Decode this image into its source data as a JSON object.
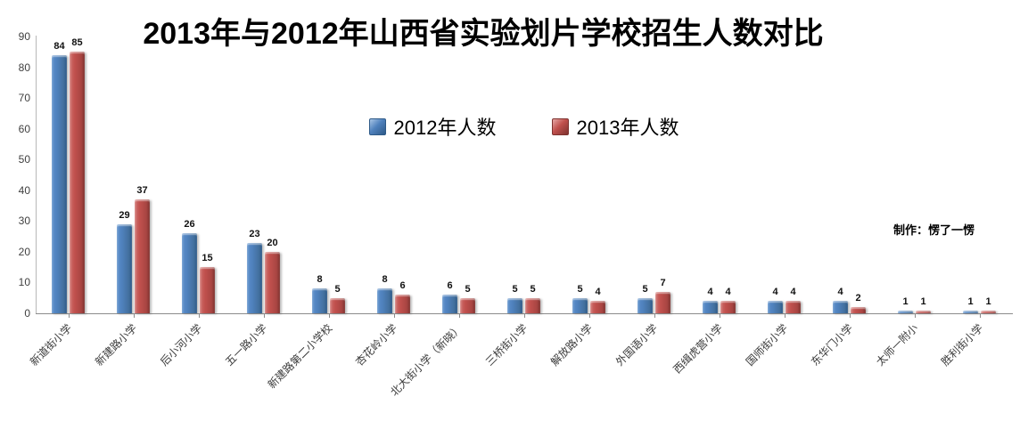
{
  "chart_data": {
    "type": "bar",
    "title": "2013年与2012年山西省实验划片学校招生人数对比",
    "categories": [
      "新道街小学",
      "新建路小学",
      "后小河小学",
      "五一路小学",
      "新建路第二小学校",
      "杏花岭小学",
      "北大街小学（新晓）",
      "三桥街小学",
      "解放路小学",
      "外国语小学",
      "西缉虎营小学",
      "国师街小学",
      "东华门小学",
      "太师一附小",
      "胜利街小学"
    ],
    "series": [
      {
        "name": "2012年人数",
        "color": "#4F81BD",
        "values": [
          84,
          29,
          26,
          23,
          8,
          8,
          6,
          5,
          5,
          5,
          4,
          4,
          4,
          1,
          1
        ]
      },
      {
        "name": "2013年人数",
        "color": "#C0504D",
        "values": [
          85,
          37,
          15,
          20,
          5,
          6,
          5,
          5,
          4,
          7,
          4,
          4,
          2,
          1,
          1
        ]
      }
    ],
    "xlabel": "",
    "ylabel": "",
    "ylim": [
      0,
      90
    ],
    "yticks": [
      0,
      10,
      20,
      30,
      40,
      50,
      60,
      70,
      80,
      90
    ],
    "grid": false,
    "legend_position": "top-center",
    "data_labels": true,
    "bar_style": "beveled-3d"
  },
  "credit": "制作：愣了一愣"
}
